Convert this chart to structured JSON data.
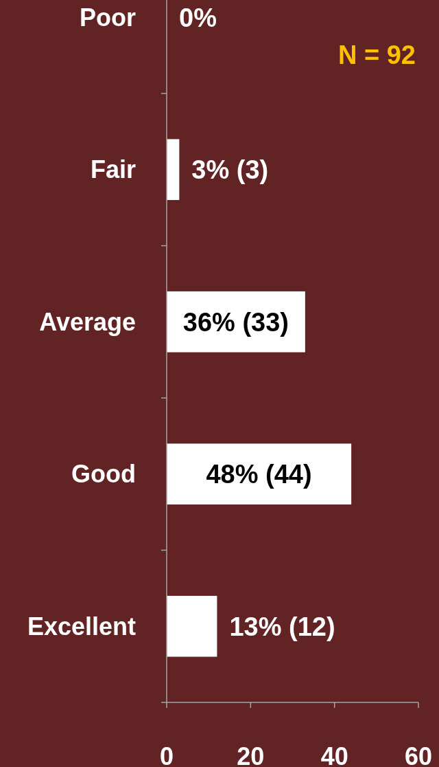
{
  "chart_data": {
    "type": "bar",
    "orientation": "horizontal",
    "categories": [
      "Poor",
      "Fair",
      "Average",
      "Good",
      "Excellent"
    ],
    "values": [
      0,
      3,
      33,
      44,
      12
    ],
    "value_labels": [
      "0%",
      "3% (3)",
      "36% (33)",
      "48% (44)",
      "13% (12)"
    ],
    "color": "#ffffff",
    "xlim": [
      0,
      60
    ],
    "xticks": [
      0,
      20,
      40,
      60
    ],
    "grid": false,
    "annotations": [
      "N = 92"
    ]
  }
}
